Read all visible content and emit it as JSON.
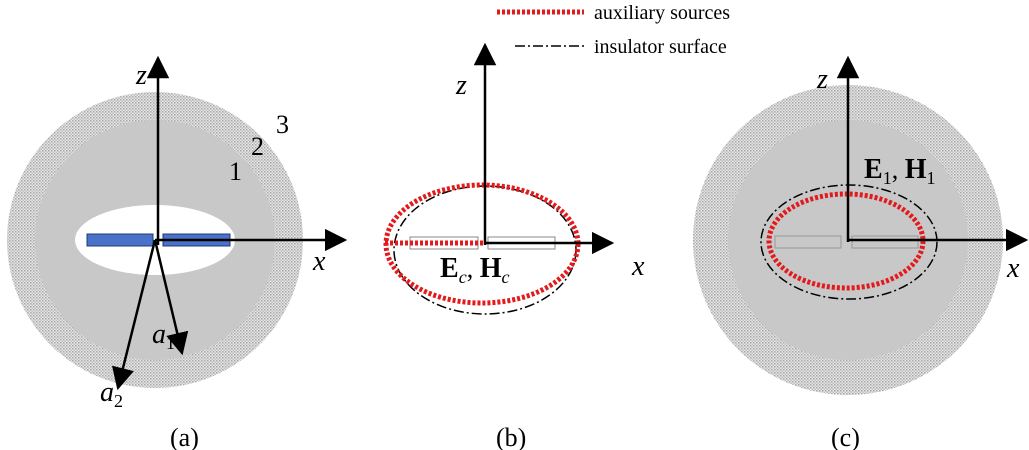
{
  "legend": [
    {
      "label": "auxiliary sources"
    },
    {
      "label": "insulator surface"
    }
  ],
  "panels": [
    {
      "label": "(a)",
      "z_axis": "z",
      "x_axis": "x",
      "regions": [
        "1",
        "2",
        "3"
      ],
      "radii": [
        {
          "symbol": "a",
          "subscript": "1"
        },
        {
          "symbol": "a",
          "subscript": "2"
        }
      ]
    },
    {
      "label": "(b)",
      "z_axis": "z",
      "x_axis": "x",
      "fields": [
        {
          "symbol": "E",
          "subscript": "c"
        },
        {
          "symbol": "H",
          "subscript": "c"
        }
      ],
      "separator": ", "
    },
    {
      "label": "(c)",
      "z_axis": "z",
      "x_axis": "x",
      "fields": [
        {
          "symbol": "E",
          "subscript": "1"
        },
        {
          "symbol": "H",
          "subscript": "1"
        }
      ],
      "separator": ", "
    }
  ]
}
